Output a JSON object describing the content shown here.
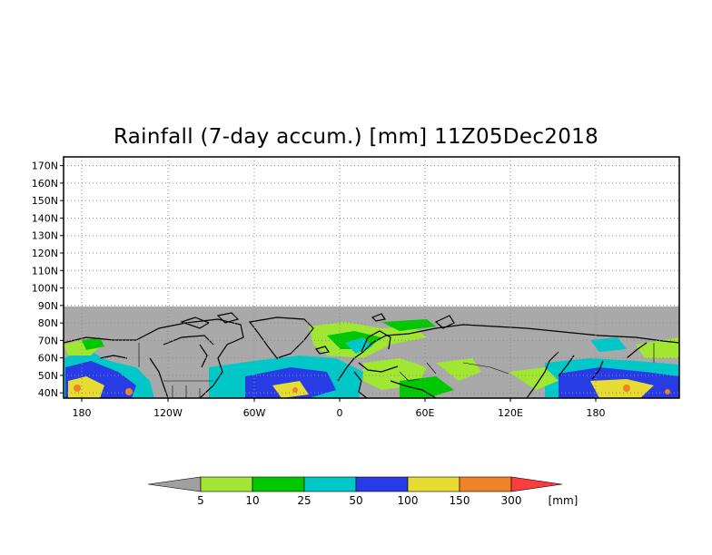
{
  "title": "Rainfall (7-day accum.) [mm] 11Z05Dec2018",
  "map": {
    "lat_labels": [
      "170N",
      "160N",
      "150N",
      "140N",
      "130N",
      "120N",
      "110N",
      "100N",
      "90N",
      "80N",
      "70N",
      "60N",
      "50N",
      "40N"
    ],
    "lon_labels": [
      "180",
      "120W",
      "60W",
      "0",
      "60E",
      "120E",
      "180"
    ],
    "no_data_color": "#a9a9a9",
    "gridlines": "dotted"
  },
  "colorbar": {
    "thresholds": [
      "5",
      "10",
      "25",
      "50",
      "100",
      "150",
      "300"
    ],
    "unit": "[mm]",
    "colors": [
      "#a0a0a0",
      "#a0e632",
      "#00c800",
      "#00c8c8",
      "#283ce6",
      "#e6dc32",
      "#f08228",
      "#fa3c3c"
    ]
  }
}
